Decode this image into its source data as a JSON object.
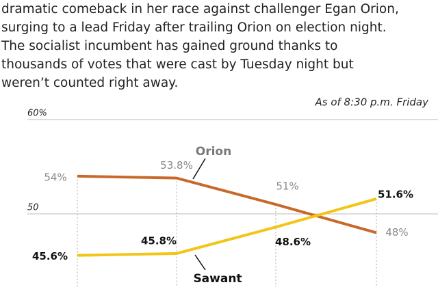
{
  "chart_data": {
    "type": "line",
    "body_lines": [
      "dramatic comeback in her race against challenger Egan Orion,",
      "surging to a lead Friday after trailing Orion on election night.",
      "The socialist incumbent has gained ground thanks to",
      "thousands of votes that were cast by Tuesday night but",
      "weren’t counted right away."
    ],
    "annotation": "As of 8:30 p.m. Friday",
    "categories": [
      null,
      null,
      null,
      null
    ],
    "series": [
      {
        "name": "Orion",
        "color": "#c8692a",
        "values": [
          54,
          53.8,
          51,
          48
        ],
        "value_labels": [
          "54%",
          "53.8%",
          "51%",
          "48%"
        ]
      },
      {
        "name": "Sawant",
        "color": "#f2c517",
        "values": [
          45.6,
          45.8,
          48.6,
          51.6
        ],
        "value_labels": [
          "45.6%",
          "45.8%",
          "48.6%",
          "51.6%"
        ]
      }
    ],
    "ylim": [
      42.5,
      60
    ],
    "yticks": [
      {
        "value": 60,
        "label": "60%"
      },
      50
    ],
    "grid": true
  }
}
